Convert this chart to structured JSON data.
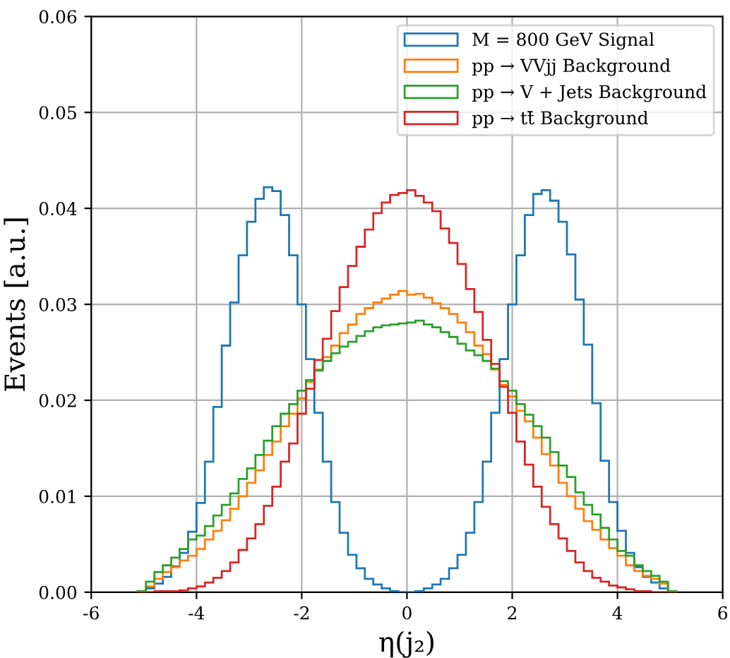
{
  "chart_data": {
    "type": "histogram",
    "xlabel": "η(j₂)",
    "ylabel": "Events [a.u.]",
    "bins": [
      -5.12,
      -4.96,
      -4.8,
      -4.64,
      -4.48,
      -4.32,
      -4.16,
      -4.0,
      -3.84,
      -3.68,
      -3.52,
      -3.36,
      -3.2,
      -3.04,
      -2.88,
      -2.72,
      -2.56,
      -2.4,
      -2.24,
      -2.08,
      -1.92,
      -1.76,
      -1.6,
      -1.44,
      -1.28,
      -1.12,
      -0.96,
      -0.8,
      -0.64,
      -0.48,
      -0.32,
      -0.16,
      0.0,
      0.16,
      0.32,
      0.48,
      0.64,
      0.8,
      0.96,
      1.12,
      1.28,
      1.44,
      1.6,
      1.76,
      1.92,
      2.08,
      2.24,
      2.4,
      2.56,
      2.72,
      2.88,
      3.04,
      3.2,
      3.36,
      3.52,
      3.68,
      3.84,
      4.0,
      4.16,
      4.32,
      4.48,
      4.64,
      4.8,
      4.96,
      5.12
    ],
    "series": [
      {
        "name": "M = 800 GeV Signal",
        "color": "#1f77b4",
        "values": [
          0.0,
          0.0004,
          0.0009,
          0.0016,
          0.0027,
          0.0041,
          0.0063,
          0.0093,
          0.0136,
          0.0193,
          0.0257,
          0.0302,
          0.0351,
          0.0386,
          0.041,
          0.0422,
          0.0418,
          0.0393,
          0.0351,
          0.03,
          0.0243,
          0.0187,
          0.0136,
          0.0094,
          0.0062,
          0.0039,
          0.0025,
          0.0014,
          0.0008,
          0.0004,
          0.0001,
          0.0,
          0.0,
          0.0001,
          0.0004,
          0.0008,
          0.0014,
          0.0025,
          0.0039,
          0.0062,
          0.0094,
          0.0136,
          0.0187,
          0.0243,
          0.03,
          0.0351,
          0.0393,
          0.0415,
          0.0419,
          0.0408,
          0.0386,
          0.0352,
          0.0305,
          0.0258,
          0.0197,
          0.0137,
          0.0094,
          0.0064,
          0.0041,
          0.0026,
          0.0016,
          0.001,
          0.0004,
          0.0001
        ]
      },
      {
        "name": "pp → VVjj Background",
        "color": "#ff7f0e",
        "values": [
          0.0,
          0.0006,
          0.0014,
          0.0021,
          0.0026,
          0.0033,
          0.0038,
          0.0045,
          0.0055,
          0.0064,
          0.0075,
          0.0087,
          0.01,
          0.0114,
          0.0127,
          0.0143,
          0.0157,
          0.0173,
          0.0186,
          0.0202,
          0.0219,
          0.0232,
          0.0245,
          0.0257,
          0.027,
          0.0279,
          0.029,
          0.0296,
          0.0302,
          0.0306,
          0.031,
          0.0314,
          0.031,
          0.0311,
          0.0307,
          0.0301,
          0.0296,
          0.029,
          0.0281,
          0.0271,
          0.0257,
          0.0248,
          0.0232,
          0.0216,
          0.0204,
          0.0189,
          0.0178,
          0.0161,
          0.0144,
          0.0132,
          0.0114,
          0.01,
          0.0087,
          0.0074,
          0.0065,
          0.0055,
          0.0046,
          0.0038,
          0.0028,
          0.0022,
          0.0017,
          0.0014,
          0.0009,
          0.0001
        ]
      },
      {
        "name": "pp → V + Jets Background",
        "color": "#2ca02c",
        "values": [
          0.0001,
          0.0011,
          0.0021,
          0.0028,
          0.0036,
          0.0045,
          0.0055,
          0.0059,
          0.0069,
          0.008,
          0.0091,
          0.0103,
          0.0118,
          0.0129,
          0.0143,
          0.0158,
          0.0173,
          0.0186,
          0.0196,
          0.021,
          0.0221,
          0.0231,
          0.0241,
          0.0249,
          0.0256,
          0.0261,
          0.0267,
          0.0272,
          0.0276,
          0.0278,
          0.0279,
          0.028,
          0.0281,
          0.0283,
          0.0279,
          0.0276,
          0.0271,
          0.0266,
          0.0259,
          0.0252,
          0.0247,
          0.0241,
          0.0233,
          0.022,
          0.021,
          0.0196,
          0.0185,
          0.0173,
          0.0161,
          0.0146,
          0.0132,
          0.012,
          0.0104,
          0.0091,
          0.0081,
          0.0067,
          0.0055,
          0.0043,
          0.0038,
          0.0028,
          0.0022,
          0.0017,
          0.0011,
          0.0001
        ]
      },
      {
        "name": "pp → tt̄ Background",
        "color": "#d62728",
        "values": [
          0.0,
          0.0,
          0.0001,
          0.0001,
          0.0001,
          0.0002,
          0.0004,
          0.0006,
          0.001,
          0.0015,
          0.0022,
          0.0031,
          0.0044,
          0.0056,
          0.0071,
          0.009,
          0.011,
          0.0136,
          0.0155,
          0.0186,
          0.0212,
          0.0242,
          0.0264,
          0.0293,
          0.0318,
          0.034,
          0.036,
          0.0378,
          0.0395,
          0.0406,
          0.0414,
          0.0416,
          0.0419,
          0.0413,
          0.0406,
          0.0397,
          0.0379,
          0.0364,
          0.0342,
          0.0316,
          0.0292,
          0.0263,
          0.0238,
          0.0214,
          0.0187,
          0.0157,
          0.0133,
          0.011,
          0.0089,
          0.0071,
          0.0056,
          0.0043,
          0.0031,
          0.0022,
          0.0015,
          0.0011,
          0.0007,
          0.0005,
          0.0003,
          0.0001,
          0.0001,
          0.0,
          0.0,
          0.0
        ]
      }
    ],
    "xlim": [
      -6,
      6
    ],
    "xticks": [
      -6,
      -4,
      -2,
      0,
      2,
      4,
      6
    ],
    "ylim": [
      0,
      0.06
    ],
    "yticks": [
      {
        "value": 0,
        "label": "0.00"
      },
      {
        "value": 0.01,
        "label": "0.01"
      },
      {
        "value": 0.02,
        "label": "0.02"
      },
      {
        "value": 0.03,
        "label": "0.03"
      },
      {
        "value": 0.04,
        "label": "0.04"
      },
      {
        "value": 0.05,
        "label": "0.05"
      },
      {
        "value": 0.06,
        "label": "0.06"
      }
    ],
    "grid": true,
    "legend": "top right"
  }
}
